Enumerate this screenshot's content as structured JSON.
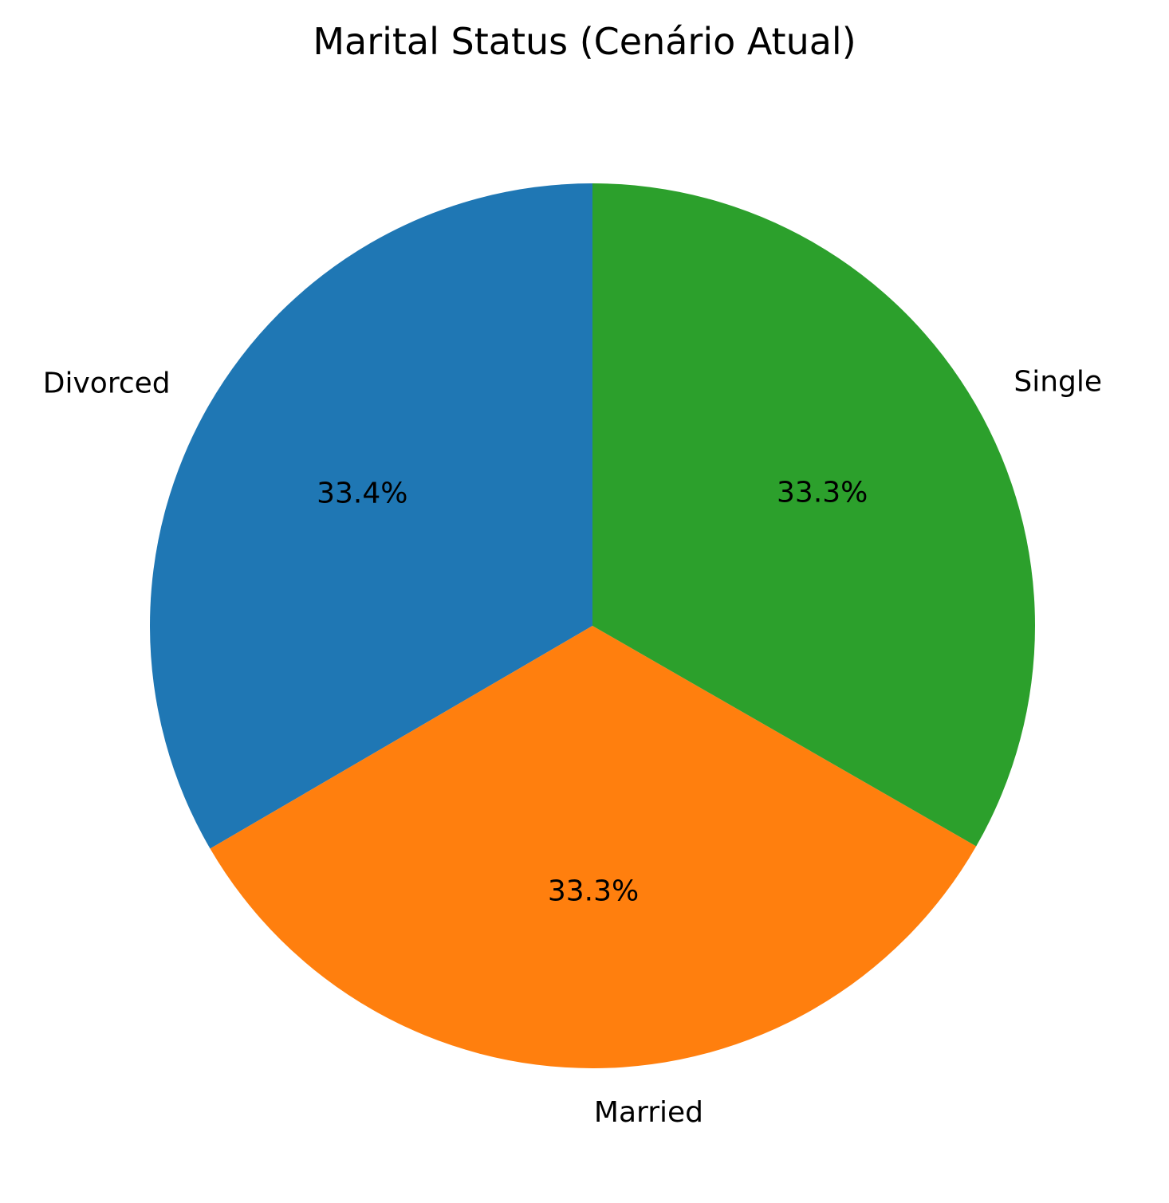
{
  "chart_data": {
    "type": "pie",
    "title": "Marital Status (Cenário Atual)",
    "labels": [
      "Divorced",
      "Married",
      "Single"
    ],
    "values": [
      33.4,
      33.3,
      33.3
    ],
    "autopct_labels": [
      "33.4%",
      "33.3%",
      "33.3%"
    ],
    "colors": [
      "#1f77b4",
      "#ff7f0e",
      "#2ca02c"
    ],
    "start_angle_deg": 90,
    "direction": "counterclockwise"
  }
}
